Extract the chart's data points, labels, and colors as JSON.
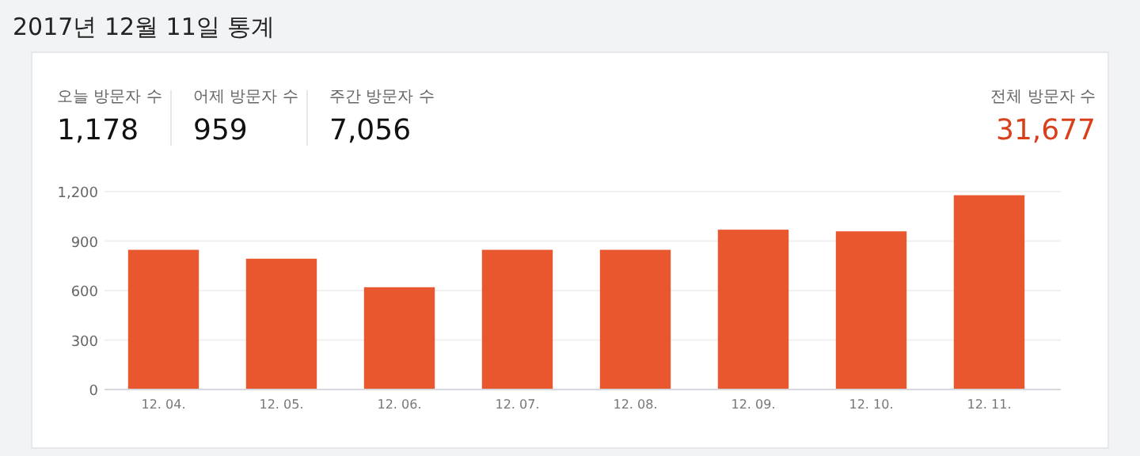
{
  "chart_data": {
    "type": "bar",
    "title": "2017년 12월 11일 통계",
    "annotations": [
      "오늘 방문자 수",
      "1,178",
      "어제 방문자 수",
      "959",
      "주간 방문자 수",
      "7,056",
      "전체 방문자 수",
      "31,677"
    ],
    "categories": [
      "12. 04.",
      "12. 05.",
      "12. 06.",
      "12. 07.",
      "12. 08.",
      "12. 09.",
      "12. 10.",
      "12. 11."
    ],
    "values": [
      847,
      793,
      620,
      847,
      847,
      969,
      959,
      1178
    ],
    "color": "#e9572f",
    "ylim": [
      0,
      1200
    ],
    "yticks": [
      0,
      300,
      600,
      900,
      {
        "value": 1200,
        "label": "1,200"
      }
    ],
    "grid": "y"
  }
}
